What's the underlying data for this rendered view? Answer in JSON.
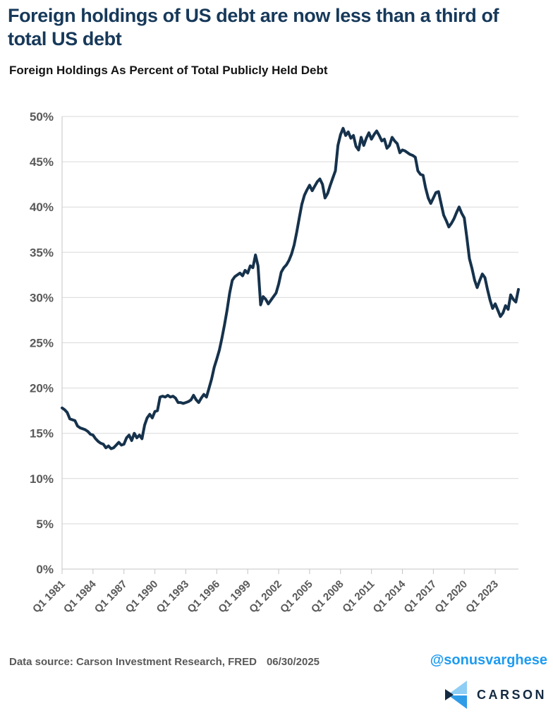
{
  "header": {
    "title": "Foreign holdings of US debt are now less than a third of total US debt",
    "subtitle": "Foreign Holdings As Percent of Total Publicly Held Debt"
  },
  "chart_data": {
    "type": "line",
    "title": "Foreign Holdings As Percent of Total Publicly Held Debt",
    "xlabel": "",
    "ylabel": "",
    "grid": "horizontal",
    "legend": "none",
    "line_color": "#16324c",
    "grid_color": "#d9d9d9",
    "axis_color": "#c4c4c4",
    "tick_label_color": "#595959",
    "ylim": [
      0,
      50
    ],
    "y_ticks": [
      0,
      5,
      10,
      15,
      20,
      25,
      30,
      35,
      40,
      45,
      50
    ],
    "y_tick_suffix": "%",
    "xlim": [
      1981.0,
      2025.25
    ],
    "x_tick_years": [
      1981,
      1984,
      1987,
      1990,
      1993,
      1996,
      1999,
      2002,
      2005,
      2008,
      2011,
      2014,
      2017,
      2020,
      2023
    ],
    "x_tick_labels": [
      "Q1 1981",
      "Q1 1984",
      "Q1 1987",
      "Q1 1990",
      "Q1 1993",
      "Q1 1996",
      "Q1 1999",
      "Q1 2002",
      "Q1 2005",
      "Q1 2008",
      "Q1 2011",
      "Q1 2014",
      "Q1 2017",
      "Q1 2020",
      "Q1 2023"
    ],
    "series_name": "Foreign holdings as percent of total publicly held debt",
    "x_start": 1981.0,
    "x_step": 0.25,
    "values": [
      17.8,
      17.6,
      17.3,
      16.6,
      16.5,
      16.4,
      15.8,
      15.6,
      15.5,
      15.4,
      15.2,
      14.9,
      14.8,
      14.4,
      14.1,
      13.9,
      13.8,
      13.4,
      13.6,
      13.3,
      13.4,
      13.7,
      14.0,
      13.7,
      13.8,
      14.5,
      14.8,
      14.2,
      15.0,
      14.5,
      14.8,
      14.4,
      15.9,
      16.7,
      17.1,
      16.7,
      17.4,
      17.5,
      19.0,
      19.1,
      19.0,
      19.2,
      19.0,
      19.1,
      18.9,
      18.4,
      18.4,
      18.3,
      18.4,
      18.5,
      18.7,
      19.2,
      18.7,
      18.4,
      18.9,
      19.3,
      19.0,
      20.0,
      21.0,
      22.3,
      23.2,
      24.2,
      25.5,
      27.0,
      28.6,
      30.5,
      31.9,
      32.3,
      32.5,
      32.7,
      32.4,
      33.0,
      32.7,
      33.5,
      33.3,
      34.7,
      33.5,
      29.2,
      30.1,
      29.8,
      29.3,
      29.7,
      30.1,
      30.5,
      31.5,
      32.8,
      33.3,
      33.6,
      34.1,
      34.8,
      35.8,
      37.2,
      38.8,
      40.3,
      41.3,
      41.9,
      42.4,
      41.8,
      42.3,
      42.8,
      43.1,
      42.5,
      41.0,
      41.5,
      42.4,
      43.2,
      44.0,
      46.8,
      48.0,
      48.7,
      47.9,
      48.3,
      47.6,
      47.9,
      46.7,
      46.3,
      47.7,
      46.8,
      47.6,
      48.2,
      47.5,
      48.0,
      48.4,
      47.9,
      47.3,
      47.5,
      46.5,
      46.8,
      47.7,
      47.3,
      47.0,
      46.0,
      46.3,
      46.2,
      46.0,
      45.8,
      45.7,
      45.5,
      44.0,
      43.6,
      43.5,
      42.1,
      41.0,
      40.4,
      41.0,
      41.6,
      41.7,
      40.4,
      39.1,
      38.5,
      37.8,
      38.2,
      38.7,
      39.4,
      40.0,
      39.3,
      38.8,
      36.6,
      34.3,
      33.2,
      31.9,
      31.1,
      31.9,
      32.6,
      32.2,
      30.9,
      29.7,
      28.8,
      29.3,
      28.6,
      27.9,
      28.3,
      29.1,
      28.7,
      30.3,
      29.8,
      29.5,
      30.9
    ]
  },
  "footer": {
    "data_source": "Data source: Carson Investment Research, FRED",
    "date": "06/30/2025",
    "handle": "@sonusvarghese",
    "logo_text": "CARSON"
  },
  "colors": {
    "title": "#17395a",
    "line": "#16324c",
    "handle_blue": "#1d9bf0",
    "footer_gray": "#595959",
    "logo_light_blue": "#8ecef5",
    "logo_mid_blue": "#2f9ce8",
    "logo_navy": "#142a40"
  }
}
